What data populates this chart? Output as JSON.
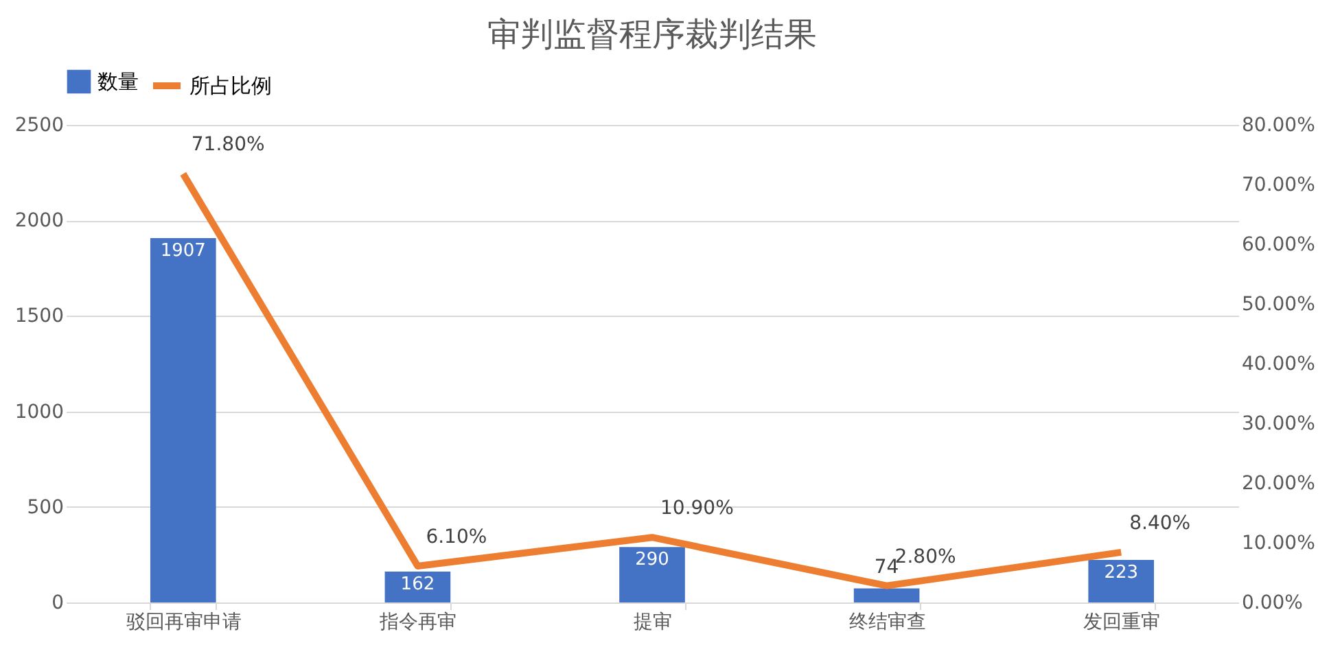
{
  "chart_data": {
    "type": "bar",
    "title": "审判监督程序裁判结果",
    "categories": [
      "驳回再审申请",
      "指令再审",
      "提审",
      "终结审查",
      "发回重审"
    ],
    "series": [
      {
        "name": "数量",
        "type": "bar",
        "color": "#4472c4",
        "values": [
          1907,
          162,
          290,
          74,
          223
        ],
        "value_labels": [
          "1907",
          "162",
          "290",
          "74",
          "223"
        ]
      },
      {
        "name": "所占比例",
        "type": "line",
        "axis": "y2",
        "color": "#ed7d31",
        "values": [
          71.8,
          6.1,
          10.9,
          2.8,
          8.4
        ],
        "value_labels": [
          "71.80%",
          "6.10%",
          "10.90%",
          "2.80%",
          "8.40%"
        ]
      }
    ],
    "ylim": [
      0,
      2500
    ],
    "yticks": [
      0,
      500,
      1000,
      1500,
      2000,
      2500
    ],
    "y2lim": [
      0,
      80
    ],
    "y2ticks": [
      {
        "value": 0,
        "label": "0.00%"
      },
      {
        "value": 10,
        "label": "10.00%"
      },
      {
        "value": 20,
        "label": "20.00%"
      },
      {
        "value": 30,
        "label": "30.00%"
      },
      {
        "value": 40,
        "label": "40.00%"
      },
      {
        "value": 50,
        "label": "50.00%"
      },
      {
        "value": 60,
        "label": "60.00%"
      },
      {
        "value": 70,
        "label": "70.00%"
      },
      {
        "value": 80,
        "label": "80.00%"
      }
    ],
    "grid": "y",
    "legend": "top",
    "marker": "none",
    "line_style": "solid"
  }
}
